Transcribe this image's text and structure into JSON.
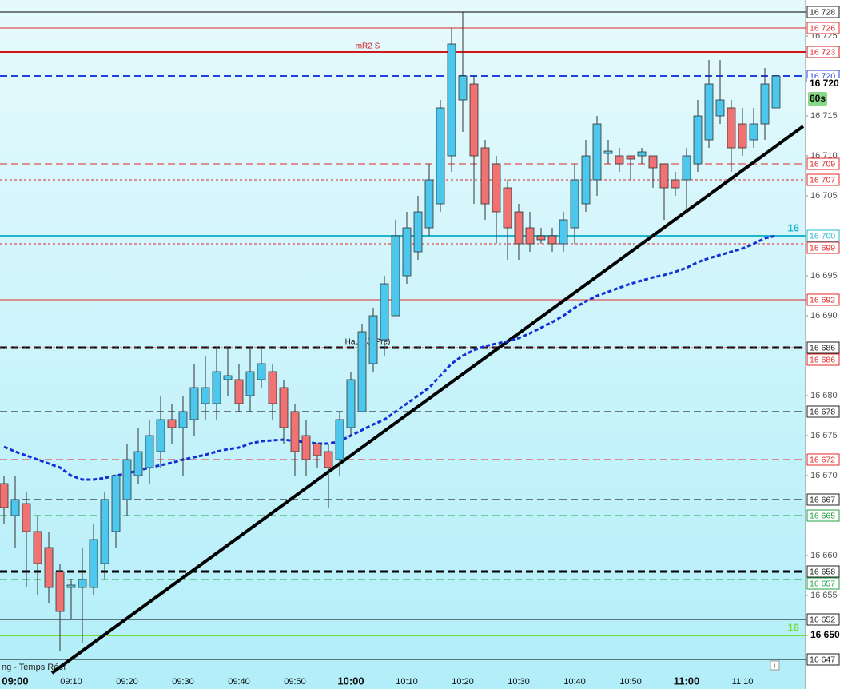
{
  "chart_data": {
    "type": "candlestick",
    "categories": [
      null,
      "09:00",
      null,
      null,
      null,
      null,
      "09:10",
      null,
      null,
      null,
      null,
      "09:20",
      null,
      null,
      null,
      null,
      "09:30",
      null,
      null,
      null,
      null,
      "09:40",
      null,
      null,
      null,
      null,
      "09:50",
      null,
      null,
      null,
      null,
      "10:00",
      null,
      null,
      null,
      null,
      "10:10",
      null,
      null,
      null,
      null,
      "10:20",
      null,
      null,
      null,
      null,
      "10:30",
      null,
      null,
      null,
      null,
      "10:40",
      null,
      null,
      null,
      null,
      "10:50",
      null,
      null,
      null,
      null,
      "11:00",
      null,
      null,
      null,
      null,
      "11:10",
      null,
      null,
      null
    ],
    "open": [
      16669,
      16665,
      16666.5,
      16663,
      16661,
      16658,
      16656,
      16656,
      16656,
      16659,
      16663,
      16667,
      16670,
      16671,
      16673,
      16677,
      16676,
      16677,
      16679,
      16679,
      16682,
      16682,
      16680,
      16682,
      16683,
      16681,
      16678,
      16675,
      16674,
      16673,
      16672,
      16676,
      16678,
      16684,
      16687,
      16690,
      16695,
      16698,
      16701,
      16704,
      16710,
      16717,
      16719,
      16711,
      16709,
      16706,
      16703,
      16701,
      16700,
      16700,
      16699,
      16701,
      16704,
      16707,
      16710.3,
      16710,
      16710,
      16710,
      16710,
      16709,
      16707,
      16707,
      16709,
      16712,
      16715,
      16716,
      16714,
      16712,
      16714,
      16716
    ],
    "high": [
      16670,
      16670,
      16668,
      16665,
      16663,
      16659,
      16657,
      16661,
      16664,
      16668,
      16670,
      16674,
      16676,
      16677,
      16680,
      16679,
      16680,
      16684,
      16685,
      16686,
      16686,
      16684,
      16686,
      16686,
      16684,
      16682,
      16679,
      16677,
      16674,
      16674,
      16678,
      16683,
      16689,
      16691,
      16695,
      16702,
      16703,
      16705,
      16709,
      16717,
      16726,
      16728,
      16720,
      16712,
      16710,
      16707,
      16704,
      16703,
      16701,
      16701,
      16703,
      16709,
      16712,
      16715,
      16712,
      16711,
      16710,
      16711,
      16710,
      16709,
      16708,
      16711,
      16717,
      16722,
      16722,
      16717,
      16716,
      16716,
      16721,
      16720
    ],
    "low": [
      16664,
      16661,
      16656,
      16655,
      16654,
      16648,
      16652,
      16649,
      16655,
      16657,
      16661,
      16665,
      16669,
      16669,
      16671,
      16674,
      16670,
      16675,
      16677,
      16677,
      16680,
      16678,
      16678,
      16681,
      16677,
      16674,
      16670,
      16670,
      16671,
      16666,
      16670,
      16675,
      16678,
      16683,
      16685,
      16690,
      16694,
      16697,
      16700,
      16703,
      16708,
      16713,
      16704,
      16702,
      16699,
      16697,
      16697,
      16698,
      16699,
      16698,
      16698,
      16699,
      16703,
      16705,
      16709,
      16708,
      16707,
      16709,
      16706,
      16702,
      16705,
      16703,
      16708,
      16711,
      16714,
      16708,
      16710,
      16711,
      16712,
      16716
    ],
    "close": [
      16666,
      16667,
      16663,
      16659,
      16656,
      16653,
      16656.3,
      16657,
      16662,
      16667,
      16670,
      16672,
      16673,
      16675,
      16677,
      16676,
      16678,
      16681,
      16681,
      16683,
      16682.5,
      16679,
      16683,
      16684,
      16679,
      16676,
      16673,
      16672,
      16672.5,
      16671,
      16677,
      16682,
      16688,
      16690,
      16694,
      16700,
      16701,
      16703,
      16707,
      16716,
      16724,
      16720,
      16710,
      16704,
      16703,
      16701,
      16699,
      16699,
      16699.5,
      16699,
      16702,
      16707,
      16710,
      16714,
      16710.6,
      16709,
      16709.6,
      16710.5,
      16708.5,
      16706,
      16706,
      16710,
      16715,
      16719,
      16717,
      16711,
      16711,
      16714,
      16719,
      16720
    ],
    "up_color": "#4cc8ee",
    "down_color": "#f07272",
    "ma": {
      "color": "#1030d8",
      "values": [
        16673.6,
        16673,
        16672.5,
        16672,
        16671.5,
        16671,
        16670,
        16669.5,
        16669.5,
        16669.7,
        16670,
        16670.3,
        16670.6,
        16671,
        16671.3,
        16671.6,
        16672,
        16672.3,
        16672.6,
        16673,
        16673.3,
        16673.5,
        16674,
        16674.3,
        16674.4,
        16674.5,
        16674.3,
        16674.2,
        16674,
        16674,
        16674.3,
        16675,
        16675.7,
        16676.4,
        16677,
        16678,
        16679,
        16680,
        16681,
        16682.5,
        16684,
        16685,
        16685.7,
        16686.2,
        16686.5,
        16686.8,
        16687.2,
        16687.8,
        16688.5,
        16689.2,
        16690,
        16691,
        16691.8,
        16692.5,
        16693,
        16693.5,
        16694,
        16694.4,
        16694.8,
        16695.1,
        16695.5,
        16696,
        16696.7,
        16697.2,
        16697.6,
        16698,
        16698.4,
        16699,
        16699.7,
        16700
      ]
    },
    "trendline": {
      "color": "#000000",
      "values": [
        16645.3,
        16713.7
      ]
    },
    "ylim": [
      16643.3,
      16729.5
    ],
    "yticks": [
      {
        "value": 16725,
        "label": "16 725"
      },
      {
        "value": 16715,
        "label": "16 715"
      },
      {
        "value": 16710,
        "label": "16 710"
      },
      {
        "value": 16705,
        "label": "16 705"
      },
      {
        "value": 16695,
        "label": "16 695"
      },
      {
        "value": 16690,
        "label": "16 690"
      },
      {
        "value": 16680,
        "label": "16 680"
      },
      {
        "value": 16675,
        "label": "16 675"
      },
      {
        "value": 16670,
        "label": "16 670"
      },
      {
        "value": 16660,
        "label": "16 660"
      },
      {
        "value": 16655,
        "label": "16 655"
      },
      {
        "value": 16650,
        "label": "16 650"
      }
    ],
    "levels": [
      {
        "value": 16728,
        "label": "16 728",
        "color": "#000000",
        "style": "solid",
        "width": 1
      },
      {
        "value": 16726,
        "label": "16 726",
        "color": "#e02828",
        "style": "solid",
        "width": 1
      },
      {
        "value": 16723,
        "label": "16 723",
        "color": "#d01818",
        "style": "solid",
        "width": 2,
        "note": "mR2 S"
      },
      {
        "value": 16720,
        "label": "16 720",
        "color": "#2040e0",
        "style": "dashed",
        "width": 2
      },
      {
        "value": 16709,
        "label": "16 709",
        "color": "#e02828",
        "style": "dashed",
        "width": 1
      },
      {
        "value": 16707,
        "label": "16 707",
        "color": "#e02828",
        "style": "dotted",
        "width": 1
      },
      {
        "value": 16700,
        "label": "16 700",
        "color": "#20b8d0",
        "style": "solid",
        "width": 2,
        "tag": "16"
      },
      {
        "value": 16699,
        "label": "16 699",
        "color": "#e02828",
        "style": "dotted",
        "width": 1
      },
      {
        "value": 16692,
        "label": "16 692",
        "color": "#e02828",
        "style": "solid",
        "width": 1
      },
      {
        "value": 16686,
        "label": "16 686",
        "color": "#000000",
        "style": "dashed",
        "width": 3,
        "note": "Haut (J. Pré)"
      },
      {
        "value": 16686,
        "label": "16 686",
        "color": "#e02828",
        "style": "dotted",
        "width": 1
      },
      {
        "value": 16678,
        "label": "16 678",
        "color": "#000000",
        "style": "dashed",
        "width": 1
      },
      {
        "value": 16672,
        "label": "16 672",
        "color": "#e02828",
        "style": "dashed",
        "width": 1
      },
      {
        "value": 16667,
        "label": "16 667",
        "color": "#000000",
        "style": "dashed",
        "width": 1
      },
      {
        "value": 16665,
        "label": "16 665",
        "color": "#20a040",
        "style": "dashed",
        "width": 1
      },
      {
        "value": 16658,
        "label": "16 658",
        "color": "#000000",
        "style": "dashed",
        "width": 3
      },
      {
        "value": 16657,
        "label": "16 657",
        "color": "#20a040",
        "style": "dashed",
        "width": 1
      },
      {
        "value": 16652,
        "label": "16 652",
        "color": "#000000",
        "style": "solid",
        "width": 1
      },
      {
        "value": 16650,
        "color": "#70e030",
        "style": "solid",
        "width": 2,
        "tag": "16"
      },
      {
        "value": 16647,
        "label": "16 647",
        "color": "#000000",
        "style": "solid",
        "width": 1
      }
    ],
    "current": {
      "value": 16720,
      "label": "16 720",
      "timer": "60s"
    },
    "footer_text": "ng - Temps Réel"
  }
}
